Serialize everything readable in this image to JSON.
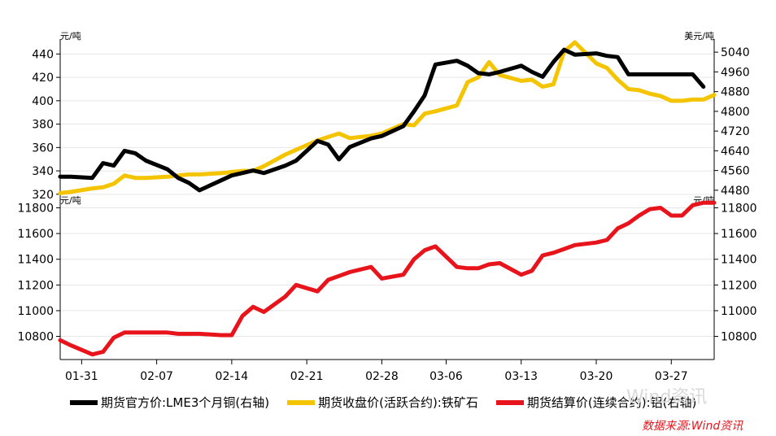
{
  "chart_data": [
    {
      "type": "line",
      "x_dates": [
        "01-29",
        "01-30",
        "02-01",
        "02-02",
        "02-03",
        "02-04",
        "02-05",
        "02-06",
        "02-08",
        "02-09",
        "02-10",
        "02-11",
        "02-13",
        "02-14",
        "02-15",
        "02-16",
        "02-17",
        "02-19",
        "02-20",
        "02-22",
        "02-23",
        "02-24",
        "02-25",
        "02-27",
        "02-28",
        "03-02",
        "03-03",
        "03-04",
        "03-05",
        "03-07",
        "03-08",
        "03-09",
        "03-10",
        "03-11",
        "03-13",
        "03-14",
        "03-15",
        "03-16",
        "03-17",
        "03-18",
        "03-20",
        "03-21",
        "03-22",
        "03-23",
        "03-24",
        "03-25",
        "03-26",
        "03-27",
        "03-28",
        "03-29",
        "03-30",
        "03-31"
      ],
      "left_unit": "元/吨",
      "right_unit": "美元/吨",
      "left_ylim": [
        315,
        450
      ],
      "right_ylim": [
        4440,
        5080
      ],
      "left_ticks": [
        320,
        340,
        360,
        380,
        400,
        420,
        440
      ],
      "right_ticks": [
        4480,
        4560,
        4640,
        4720,
        4800,
        4880,
        4960,
        5040
      ],
      "series": [
        {
          "name": "期货官方价:LME3个月铜(右轴)",
          "axis": "right",
          "color": "#000000",
          "x": [
            "01-29",
            "01-30",
            "02-01",
            "02-02",
            "02-03",
            "02-04",
            "02-05",
            "02-06",
            "02-08",
            "02-09",
            "02-10",
            "02-11",
            "02-13",
            "02-14",
            "02-15",
            "02-16",
            "02-17",
            "02-19",
            "02-20",
            "02-22",
            "02-23",
            "02-24",
            "02-25",
            "02-27",
            "02-28",
            "03-02",
            "03-03",
            "03-04",
            "03-05",
            "03-07",
            "03-08",
            "03-09",
            "03-10",
            "03-11",
            "03-13",
            "03-14",
            "03-15",
            "03-16",
            "03-17",
            "03-18",
            "03-20",
            "03-21",
            "03-22",
            "03-23",
            "03-24",
            "03-25",
            "03-26",
            "03-27",
            "03-28",
            "03-29",
            "03-30"
          ],
          "values": [
            4535,
            4535,
            4530,
            4590,
            4580,
            4640,
            4630,
            4600,
            4565,
            4530,
            4510,
            4480,
            4520,
            4540,
            4550,
            4560,
            4550,
            4580,
            4600,
            4680,
            4665,
            4605,
            4655,
            4690,
            4700,
            4740,
            4800,
            4865,
            4990,
            5005,
            4985,
            4955,
            4950,
            4960,
            4985,
            4960,
            4940,
            5000,
            5050,
            5030,
            5035,
            5025,
            5020,
            4950,
            4950,
            4950,
            4950,
            4950,
            4950,
            4950,
            4900
          ]
        },
        {
          "name": "期货收盘价(活跃合约):铁矿石",
          "axis": "left",
          "color": "#f5c400",
          "x": [
            "01-29",
            "01-30",
            "02-01",
            "02-02",
            "02-03",
            "02-04",
            "02-05",
            "02-06",
            "02-08",
            "02-09",
            "02-10",
            "02-11",
            "02-13",
            "02-14",
            "02-15",
            "02-16",
            "02-17",
            "02-19",
            "02-20",
            "02-22",
            "02-23",
            "02-24",
            "02-25",
            "02-27",
            "02-28",
            "03-02",
            "03-03",
            "03-04",
            "03-05",
            "03-07",
            "03-08",
            "03-09",
            "03-10",
            "03-11",
            "03-13",
            "03-14",
            "03-15",
            "03-16",
            "03-17",
            "03-18",
            "03-20",
            "03-21",
            "03-22",
            "03-23",
            "03-24",
            "03-25",
            "03-26",
            "03-27",
            "03-28",
            "03-29",
            "03-30",
            "03-31"
          ],
          "values": [
            321,
            322,
            325,
            326,
            329,
            336,
            334,
            334,
            335,
            336,
            337,
            337,
            338,
            339,
            340,
            340,
            344,
            354,
            358,
            366,
            369,
            372,
            368,
            370,
            372,
            380,
            379,
            389,
            391,
            396,
            416,
            420,
            433,
            422,
            417,
            418,
            412,
            414,
            442,
            450,
            432,
            428,
            418,
            410,
            409,
            406,
            404,
            400,
            400,
            401,
            401,
            405
          ]
        }
      ]
    },
    {
      "type": "line",
      "x_dates": [
        "01-29",
        "01-30",
        "02-01",
        "02-02",
        "02-03",
        "02-04",
        "02-05",
        "02-06",
        "02-08",
        "02-09",
        "02-10",
        "02-11",
        "02-13",
        "02-14",
        "02-15",
        "02-16",
        "02-17",
        "02-19",
        "02-20",
        "02-22",
        "02-23",
        "02-24",
        "02-25",
        "02-27",
        "02-28",
        "03-02",
        "03-03",
        "03-04",
        "03-05",
        "03-07",
        "03-08",
        "03-09",
        "03-10",
        "03-11",
        "03-13",
        "03-14",
        "03-15",
        "03-16",
        "03-17",
        "03-18",
        "03-20",
        "03-21",
        "03-22",
        "03-23",
        "03-24",
        "03-25",
        "03-26",
        "03-27",
        "03-28",
        "03-29",
        "03-30",
        "03-31"
      ],
      "left_unit": "元/吨",
      "right_unit": "元/吨",
      "ylim": [
        10620,
        11860
      ],
      "left_ticks": [
        10800,
        11000,
        11200,
        11400,
        11600,
        11800
      ],
      "right_ticks": [
        10800,
        11000,
        11200,
        11400,
        11600,
        11800
      ],
      "series": [
        {
          "name": "期货结算价(连续合约):铝(右轴)",
          "axis": "right",
          "color": "#e8141c",
          "x": [
            "01-29",
            "01-30",
            "02-01",
            "02-02",
            "02-03",
            "02-04",
            "02-05",
            "02-06",
            "02-08",
            "02-09",
            "02-10",
            "02-11",
            "02-13",
            "02-14",
            "02-15",
            "02-16",
            "02-17",
            "02-19",
            "02-20",
            "02-22",
            "02-23",
            "02-24",
            "02-25",
            "02-27",
            "02-28",
            "03-02",
            "03-03",
            "03-04",
            "03-05",
            "03-07",
            "03-08",
            "03-09",
            "03-10",
            "03-11",
            "03-13",
            "03-14",
            "03-15",
            "03-16",
            "03-17",
            "03-18",
            "03-20",
            "03-21",
            "03-22",
            "03-23",
            "03-24",
            "03-25",
            "03-26",
            "03-27",
            "03-28",
            "03-29",
            "03-30",
            "03-31"
          ],
          "values": [
            10770,
            10730,
            10660,
            10680,
            10790,
            10830,
            10830,
            10830,
            10830,
            10820,
            10820,
            10820,
            10810,
            10810,
            10960,
            11030,
            10990,
            11110,
            11200,
            11150,
            11240,
            11270,
            11300,
            11340,
            11250,
            11280,
            11400,
            11470,
            11500,
            11340,
            11330,
            11330,
            11360,
            11370,
            11280,
            11310,
            11430,
            11450,
            11480,
            11510,
            11530,
            11550,
            11640,
            11680,
            11740,
            11790,
            11800,
            11740,
            11740,
            11820,
            11840,
            11840
          ]
        }
      ]
    }
  ],
  "x_axis": {
    "tick_labels": [
      "01-31",
      "02-07",
      "02-14",
      "02-21",
      "02-28",
      "03-06",
      "03-13",
      "03-20",
      "03-27"
    ]
  },
  "legend": {
    "items": [
      {
        "label": "期货官方价:LME3个月铜(右轴)",
        "color": "#000000"
      },
      {
        "label": "期货收盘价(活跃合约):铁矿石",
        "color": "#f5c400"
      },
      {
        "label": "期货结算价(连续合约):铝(右轴)",
        "color": "#e8141c"
      }
    ]
  },
  "source": {
    "text": "数据来源:Wind资讯",
    "color": "#e8141c"
  },
  "watermark": {
    "text": "Wind资讯"
  }
}
